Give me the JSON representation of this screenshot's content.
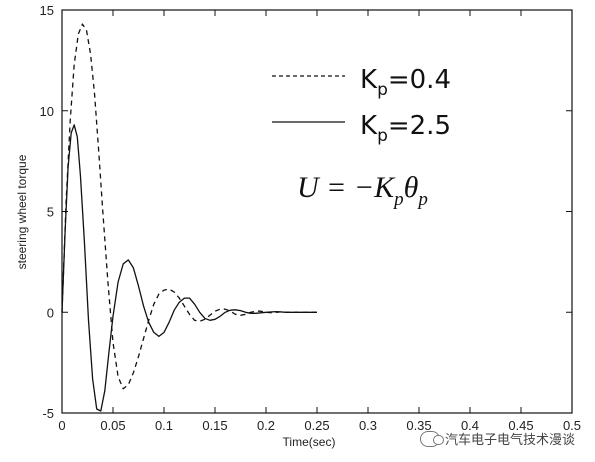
{
  "chart_data": {
    "type": "line",
    "title": "",
    "xlabel": "Time(sec)",
    "ylabel": "steering wheel torque",
    "xlim": [
      0,
      0.5
    ],
    "ylim": [
      -5,
      15
    ],
    "x_ticks": [
      0,
      0.05,
      0.1,
      0.15,
      0.2,
      0.25,
      0.3,
      0.35,
      0.4,
      0.45,
      0.5
    ],
    "x_tick_labels": [
      "0",
      "0.05",
      "0.1",
      "0.15",
      "0.2",
      "0.25",
      "0.3",
      "0.35",
      "0.4",
      "0.45",
      "0.5"
    ],
    "y_ticks": [
      -5,
      0,
      5,
      10,
      15
    ],
    "y_tick_labels": [
      "-5",
      "0",
      "5",
      "10",
      "15"
    ],
    "grid": false,
    "legend_position": "top-right",
    "series": [
      {
        "name": "Kp=0.4",
        "style": "dashed",
        "x": [
          0,
          0.004,
          0.008,
          0.012,
          0.016,
          0.02,
          0.024,
          0.028,
          0.032,
          0.036,
          0.04,
          0.045,
          0.05,
          0.055,
          0.06,
          0.065,
          0.07,
          0.075,
          0.08,
          0.085,
          0.09,
          0.095,
          0.1,
          0.105,
          0.11,
          0.115,
          0.12,
          0.125,
          0.13,
          0.135,
          0.14,
          0.145,
          0.15,
          0.155,
          0.16,
          0.165,
          0.17,
          0.175,
          0.18,
          0.185,
          0.19,
          0.195,
          0.2,
          0.205,
          0.21,
          0.215,
          0.22,
          0.23,
          0.24,
          0.25
        ],
        "y": [
          0,
          5.5,
          9.5,
          12.3,
          13.8,
          14.3,
          14.0,
          12.8,
          10.8,
          8.0,
          5.0,
          1.5,
          -1.5,
          -3.2,
          -3.8,
          -3.6,
          -3.0,
          -2.2,
          -1.3,
          -0.4,
          0.4,
          0.9,
          1.1,
          1.15,
          1.0,
          0.7,
          0.3,
          -0.1,
          -0.4,
          -0.45,
          -0.35,
          -0.15,
          0.05,
          0.15,
          0.15,
          0.05,
          -0.1,
          -0.15,
          -0.1,
          0.0,
          0.05,
          0.05,
          0.0,
          -0.02,
          0.0,
          0.02,
          0.0,
          0.0,
          0.0,
          0.0
        ]
      },
      {
        "name": "Kp=2.5",
        "style": "solid",
        "x": [
          0,
          0.003,
          0.006,
          0.009,
          0.012,
          0.015,
          0.018,
          0.022,
          0.026,
          0.03,
          0.034,
          0.038,
          0.042,
          0.046,
          0.05,
          0.055,
          0.06,
          0.065,
          0.07,
          0.075,
          0.08,
          0.085,
          0.09,
          0.095,
          0.1,
          0.105,
          0.11,
          0.115,
          0.12,
          0.125,
          0.13,
          0.135,
          0.14,
          0.145,
          0.15,
          0.155,
          0.16,
          0.165,
          0.17,
          0.175,
          0.18,
          0.185,
          0.19,
          0.2,
          0.21,
          0.22,
          0.23,
          0.24,
          0.25
        ],
        "y": [
          0,
          4.0,
          7.2,
          8.9,
          9.3,
          8.7,
          6.8,
          3.5,
          -0.4,
          -3.3,
          -4.8,
          -4.9,
          -3.9,
          -2.0,
          -0.2,
          1.5,
          2.4,
          2.6,
          2.2,
          1.3,
          0.3,
          -0.5,
          -1.0,
          -1.2,
          -1.0,
          -0.5,
          0.1,
          0.5,
          0.7,
          0.7,
          0.4,
          0.0,
          -0.3,
          -0.4,
          -0.35,
          -0.2,
          0.0,
          0.1,
          0.12,
          0.08,
          0.0,
          -0.05,
          -0.05,
          0.0,
          0.03,
          0.0,
          0.0,
          0.0,
          0.0
        ]
      }
    ],
    "annotation": "U = -Kpθp"
  },
  "legend": [
    {
      "base": "K",
      "sub": "p",
      "rest": "=0.4"
    },
    {
      "base": "K",
      "sub": "p",
      "rest": "=2.5"
    }
  ],
  "formula": {
    "lhs": "U = −K",
    "sub1": "p",
    "theta": "θ",
    "sub2": "p"
  },
  "watermark": {
    "text": "汽车电子电气技术漫谈",
    "icon": "wechat-icon"
  }
}
